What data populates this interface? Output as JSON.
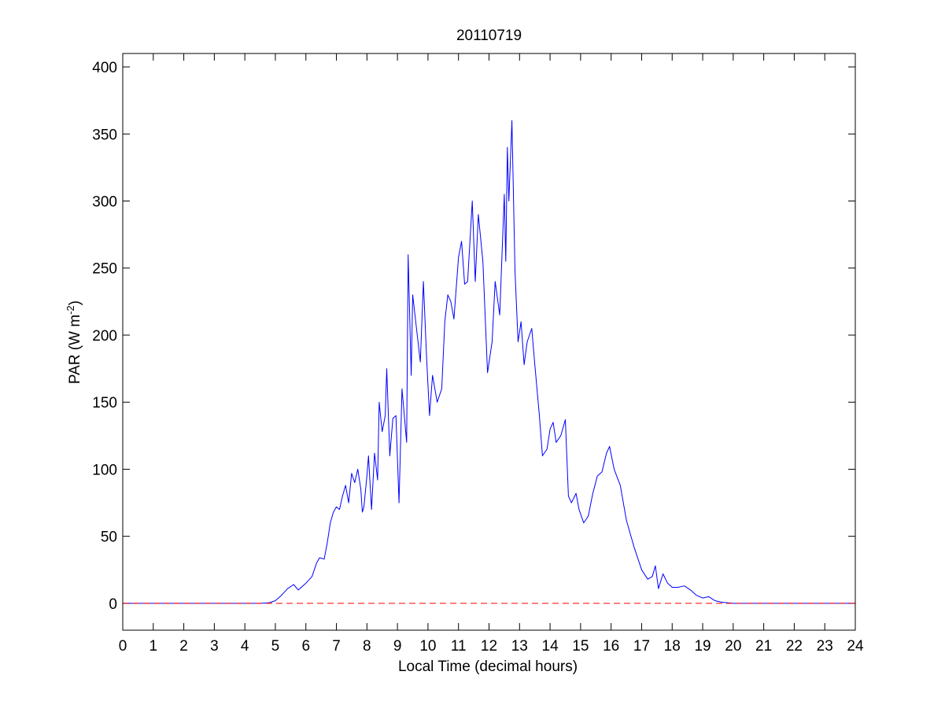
{
  "chart_data": {
    "type": "line",
    "title": "20110719",
    "xlabel": "Local Time (decimal hours)",
    "ylabel": {
      "main": "PAR (W m",
      "superscript": "-2",
      "close": ")"
    },
    "xlim": [
      0,
      24
    ],
    "ylim": [
      -20,
      410
    ],
    "xticks": [
      0,
      1,
      2,
      3,
      4,
      5,
      6,
      7,
      8,
      9,
      10,
      11,
      12,
      13,
      14,
      15,
      16,
      17,
      18,
      19,
      20,
      21,
      22,
      23,
      24
    ],
    "yticks": [
      0,
      50,
      100,
      150,
      200,
      250,
      300,
      350,
      400
    ],
    "grid": false,
    "legend": null,
    "series": [
      {
        "color": "#0000ff",
        "style": "solid",
        "x": [
          0,
          4.5,
          4.8,
          5.0,
          5.2,
          5.4,
          5.6,
          5.75,
          5.9,
          6.0,
          6.2,
          6.35,
          6.45,
          6.6,
          6.7,
          6.8,
          6.9,
          7.0,
          7.1,
          7.2,
          7.3,
          7.4,
          7.5,
          7.6,
          7.7,
          7.8,
          7.85,
          7.9,
          8.0,
          8.05,
          8.15,
          8.25,
          8.35,
          8.4,
          8.5,
          8.6,
          8.65,
          8.75,
          8.85,
          8.95,
          9.05,
          9.15,
          9.3,
          9.35,
          9.45,
          9.5,
          9.65,
          9.75,
          9.85,
          9.95,
          10.05,
          10.15,
          10.3,
          10.45,
          10.55,
          10.65,
          10.75,
          10.85,
          11.0,
          11.1,
          11.2,
          11.3,
          11.45,
          11.55,
          11.65,
          11.8,
          11.95,
          12.1,
          12.2,
          12.35,
          12.5,
          12.55,
          12.6,
          12.65,
          12.75,
          12.85,
          12.95,
          13.05,
          13.15,
          13.25,
          13.4,
          13.5,
          13.65,
          13.75,
          13.9,
          14.0,
          14.1,
          14.2,
          14.35,
          14.5,
          14.6,
          14.7,
          14.85,
          14.95,
          15.1,
          15.25,
          15.4,
          15.55,
          15.7,
          15.85,
          15.95,
          16.1,
          16.3,
          16.5,
          16.75,
          17.0,
          17.2,
          17.35,
          17.45,
          17.55,
          17.7,
          17.85,
          18.0,
          18.2,
          18.4,
          18.6,
          18.8,
          19.0,
          19.2,
          19.4,
          19.6,
          19.8,
          20.0,
          24
        ],
        "y": [
          0,
          0,
          0.5,
          2,
          6,
          11,
          14,
          10,
          13,
          15,
          20,
          30,
          34,
          33,
          45,
          60,
          68,
          72,
          70,
          80,
          88,
          75,
          97,
          90,
          100,
          85,
          68,
          72,
          95,
          110,
          70,
          112,
          92,
          150,
          128,
          140,
          175,
          110,
          138,
          140,
          75,
          160,
          120,
          260,
          170,
          230,
          200,
          180,
          240,
          185,
          140,
          170,
          150,
          160,
          210,
          230,
          225,
          212,
          258,
          270,
          238,
          240,
          300,
          240,
          290,
          255,
          172,
          195,
          240,
          215,
          305,
          255,
          340,
          300,
          360,
          248,
          195,
          210,
          178,
          195,
          205,
          178,
          140,
          110,
          115,
          130,
          135,
          120,
          125,
          137,
          80,
          75,
          82,
          70,
          60,
          65,
          82,
          95,
          98,
          112,
          117,
          100,
          88,
          62,
          42,
          25,
          18,
          20,
          28,
          11,
          22,
          15,
          12,
          12,
          13,
          10,
          6,
          4,
          5,
          2,
          1,
          0.5,
          0,
          0
        ]
      },
      {
        "color": "#ff0000",
        "style": "dashed",
        "x": [
          0,
          24
        ],
        "y": [
          0,
          0
        ]
      }
    ]
  }
}
